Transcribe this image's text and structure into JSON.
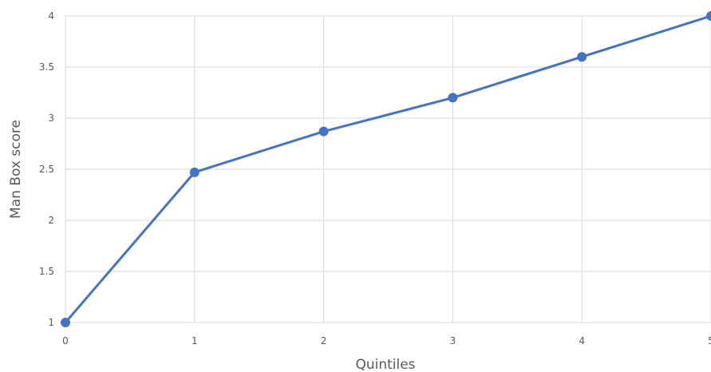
{
  "chart_data": {
    "type": "line",
    "title": "",
    "xlabel": "Quintiles",
    "ylabel": "Man Box score",
    "x": [
      0,
      1,
      2,
      3,
      4,
      5
    ],
    "x_tick_labels": [
      "0",
      "1",
      "2",
      "3",
      "4",
      "5"
    ],
    "y_ticks": [
      1,
      1.5,
      2,
      2.5,
      3,
      3.5,
      4
    ],
    "y_tick_labels": [
      "1",
      "1.5",
      "2",
      "2.5",
      "3",
      "3.5",
      "4"
    ],
    "xlim": [
      0,
      5
    ],
    "ylim": [
      1,
      4
    ],
    "grid": true,
    "legend": "none",
    "series": [
      {
        "values": [
          1.0,
          2.47,
          2.87,
          3.2,
          3.6,
          4.0
        ],
        "color": "#4472c4"
      }
    ]
  }
}
